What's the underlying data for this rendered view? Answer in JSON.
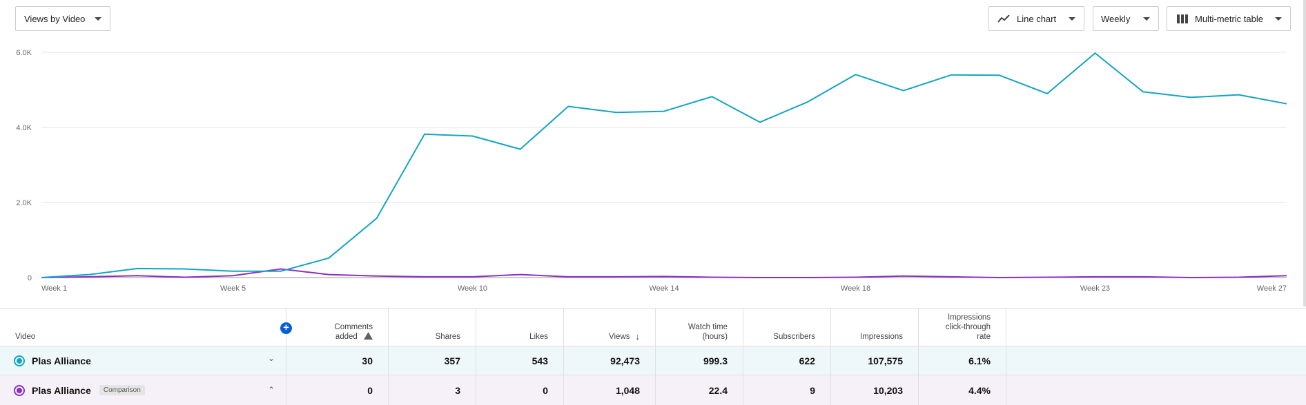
{
  "controls": {
    "report_select": "Views by Video",
    "chart_type": "Line chart",
    "period": "Weekly",
    "table_type": "Multi-metric table"
  },
  "chart_data": {
    "type": "line",
    "yticks": [
      "6.0K",
      "4.0K",
      "2.0K",
      "0"
    ],
    "ylim": [
      0,
      6000
    ],
    "xticks": [
      {
        "week": 1,
        "label": "Week 1"
      },
      {
        "week": 5,
        "label": "Week 5"
      },
      {
        "week": 10,
        "label": "Week 10"
      },
      {
        "week": 14,
        "label": "Week 14"
      },
      {
        "week": 18,
        "label": "Week 18"
      },
      {
        "week": 23,
        "label": "Week 23"
      },
      {
        "week": 27,
        "label": "Week 27"
      }
    ],
    "weeks": [
      1,
      2,
      3,
      4,
      5,
      6,
      7,
      8,
      9,
      10,
      11,
      12,
      13,
      14,
      15,
      16,
      17,
      18,
      19,
      20,
      21,
      22,
      23,
      24,
      25,
      26,
      27
    ],
    "series": [
      {
        "color": "#12a4c4",
        "values": [
          0,
          80,
          240,
          230,
          170,
          170,
          520,
          1580,
          3820,
          3770,
          3420,
          4560,
          4400,
          4430,
          4820,
          4140,
          4680,
          5410,
          4980,
          5400,
          5390,
          4900,
          5980,
          4950,
          4800,
          4870,
          4630
        ]
      },
      {
        "color": "#8d2ec2",
        "values": [
          0,
          20,
          50,
          10,
          50,
          230,
          80,
          40,
          20,
          20,
          80,
          20,
          20,
          30,
          10,
          0,
          0,
          10,
          40,
          20,
          0,
          10,
          20,
          20,
          0,
          10,
          50
        ]
      }
    ]
  },
  "table": {
    "headers": {
      "video": "Video",
      "comments_l1": "Comments",
      "comments_l2": "added",
      "shares": "Shares",
      "likes": "Likes",
      "views": "Views",
      "watch_l1": "Watch time",
      "watch_l2": "(hours)",
      "subscribers": "Subscribers",
      "impressions": "Impressions",
      "ctr_l1": "Impressions",
      "ctr_l2": "click-through",
      "ctr_l3": "rate"
    },
    "rows": [
      {
        "name": "Plas Alliance",
        "comments": "30",
        "shares": "357",
        "likes": "543",
        "views": "92,473",
        "watch": "999.3",
        "subscribers": "622",
        "impressions": "107,575",
        "ctr": "6.1%"
      },
      {
        "name": "Plas Alliance",
        "tag": "Comparison",
        "comments": "0",
        "shares": "3",
        "likes": "0",
        "views": "1,048",
        "watch": "22.4",
        "subscribers": "9",
        "impressions": "10,203",
        "ctr": "4.4%"
      }
    ]
  },
  "colors": {
    "primary": "#12a4c4",
    "comparison": "#8d2ec2",
    "accent": "#065fd4"
  }
}
